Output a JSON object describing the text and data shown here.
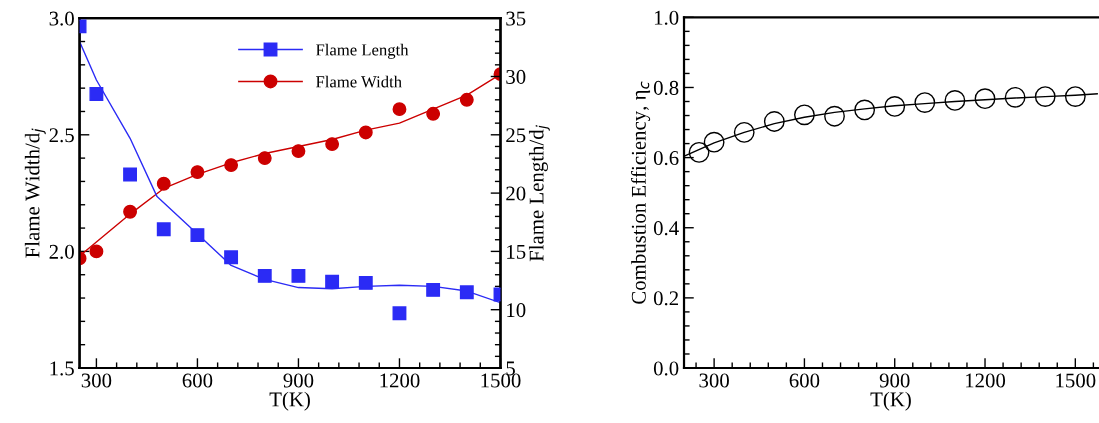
{
  "chart_data": [
    {
      "type": "scatter",
      "xlabel": "T(K)",
      "ylabel": "Flame Width/d$_{j}$",
      "y2label": "Flame Length/d$_{j}$",
      "legend": "top",
      "grid": false,
      "xlim": [
        250,
        1500
      ],
      "ylim": [
        1.5,
        3.0
      ],
      "y2lim": [
        5,
        35
      ],
      "xticks": [
        300,
        {
          "value": 360,
          "label": null
        },
        {
          "value": 420,
          "label": null
        },
        {
          "value": 480,
          "label": null
        },
        {
          "value": 540,
          "label": null
        },
        600,
        {
          "value": 660,
          "label": null
        },
        {
          "value": 720,
          "label": null
        },
        {
          "value": 780,
          "label": null
        },
        {
          "value": 840,
          "label": null
        },
        900,
        {
          "value": 960,
          "label": null
        },
        {
          "value": 1020,
          "label": null
        },
        {
          "value": 1080,
          "label": null
        },
        {
          "value": 1140,
          "label": null
        },
        1200,
        {
          "value": 1260,
          "label": null
        },
        {
          "value": 1320,
          "label": null
        },
        {
          "value": 1380,
          "label": null
        },
        {
          "value": 1440,
          "label": null
        },
        1500
      ],
      "yticks": [
        1.5,
        {
          "value": 1.6,
          "label": null
        },
        {
          "value": 1.7,
          "label": null
        },
        {
          "value": 1.8,
          "label": null
        },
        {
          "value": 1.9,
          "label": null
        },
        {
          "value": 2.0,
          "label": "2.0"
        },
        {
          "value": 2.1,
          "label": null
        },
        {
          "value": 2.2,
          "label": null
        },
        {
          "value": 2.3,
          "label": null
        },
        {
          "value": 2.4,
          "label": null
        },
        2.5,
        {
          "value": 2.6,
          "label": null
        },
        {
          "value": 2.7,
          "label": null
        },
        {
          "value": 2.8,
          "label": null
        },
        {
          "value": 2.9,
          "label": null
        },
        {
          "value": 3.0,
          "label": "3.0"
        }
      ],
      "y2ticks": [
        5,
        {
          "value": 6,
          "label": null
        },
        {
          "value": 7,
          "label": null
        },
        {
          "value": 8,
          "label": null
        },
        {
          "value": 9,
          "label": null
        },
        10,
        {
          "value": 11,
          "label": null
        },
        {
          "value": 12,
          "label": null
        },
        {
          "value": 13,
          "label": null
        },
        {
          "value": 14,
          "label": null
        },
        15,
        {
          "value": 16,
          "label": null
        },
        {
          "value": 17,
          "label": null
        },
        {
          "value": 18,
          "label": null
        },
        {
          "value": 19,
          "label": null
        },
        20,
        {
          "value": 21,
          "label": null
        },
        {
          "value": 22,
          "label": null
        },
        {
          "value": 23,
          "label": null
        },
        {
          "value": 24,
          "label": null
        },
        25,
        {
          "value": 26,
          "label": null
        },
        {
          "value": 27,
          "label": null
        },
        {
          "value": 28,
          "label": null
        },
        {
          "value": 29,
          "label": null
        },
        30,
        {
          "value": 31,
          "label": null
        },
        {
          "value": 32,
          "label": null
        },
        {
          "value": 33,
          "label": null
        },
        {
          "value": 34,
          "label": null
        },
        35
      ],
      "series": [
        {
          "name": "Flame Length",
          "axis": "y2",
          "color": "#2b2bf5",
          "marker": "square",
          "x": [
            250,
            300,
            400,
            500,
            600,
            700,
            800,
            900,
            1000,
            1100,
            1200,
            1300,
            1400,
            1500
          ],
          "values": [
            34.3,
            28.5,
            21.6,
            16.9,
            16.4,
            14.5,
            12.9,
            12.9,
            12.4,
            12.3,
            9.7,
            11.7,
            11.5,
            11.3
          ]
        },
        {
          "name": "Flame Width",
          "color": "#cc0000",
          "marker": "circle",
          "x": [
            250,
            300,
            400,
            500,
            600,
            700,
            800,
            900,
            1000,
            1100,
            1200,
            1300,
            1400,
            1500
          ],
          "values": [
            1.97,
            2.0,
            2.17,
            2.29,
            2.34,
            2.37,
            2.4,
            2.43,
            2.46,
            2.51,
            2.61,
            2.59,
            2.65,
            2.76
          ]
        },
        {
          "type": "line",
          "axis": "y2",
          "color": "#2b2bf5",
          "x": [
            250,
            300,
            400,
            480,
            600,
            700,
            800,
            900,
            1000,
            1100,
            1200,
            1300,
            1400,
            1500
          ],
          "values": [
            33.0,
            29.7,
            24.7,
            19.7,
            16.5,
            13.8,
            12.6,
            11.9,
            11.8,
            12.0,
            12.1,
            12.0,
            11.6,
            10.6
          ]
        },
        {
          "type": "line",
          "color": "#cc0000",
          "x": [
            250,
            300,
            400,
            500,
            600,
            700,
            800,
            900,
            1000,
            1100,
            1200,
            1300,
            1400,
            1500
          ],
          "values": [
            1.98,
            2.04,
            2.16,
            2.27,
            2.33,
            2.38,
            2.42,
            2.45,
            2.48,
            2.52,
            2.55,
            2.61,
            2.67,
            2.76
          ]
        }
      ]
    },
    {
      "type": "scatter",
      "xlabel": "T(K)",
      "ylabel": "Combustion Efficiency, η$_{c}$",
      "grid": false,
      "xlim": [
        200,
        1575
      ],
      "ylim": [
        0,
        1
      ],
      "xticks": [
        {
          "value": 240,
          "label": null
        },
        300,
        {
          "value": 360,
          "label": null
        },
        {
          "value": 420,
          "label": null
        },
        {
          "value": 480,
          "label": null
        },
        {
          "value": 540,
          "label": null
        },
        600,
        {
          "value": 660,
          "label": null
        },
        {
          "value": 720,
          "label": null
        },
        {
          "value": 780,
          "label": null
        },
        {
          "value": 840,
          "label": null
        },
        900,
        {
          "value": 960,
          "label": null
        },
        {
          "value": 1020,
          "label": null
        },
        {
          "value": 1080,
          "label": null
        },
        {
          "value": 1140,
          "label": null
        },
        1200,
        {
          "value": 1260,
          "label": null
        },
        {
          "value": 1320,
          "label": null
        },
        {
          "value": 1380,
          "label": null
        },
        {
          "value": 1440,
          "label": null
        },
        1500,
        {
          "value": 1560,
          "label": null
        }
      ],
      "yticks": [
        {
          "value": 0,
          "label": "0.0"
        },
        {
          "value": 0.04,
          "label": null
        },
        {
          "value": 0.08,
          "label": null
        },
        {
          "value": 0.12,
          "label": null
        },
        {
          "value": 0.16,
          "label": null
        },
        0.2,
        {
          "value": 0.24,
          "label": null
        },
        {
          "value": 0.28,
          "label": null
        },
        {
          "value": 0.32,
          "label": null
        },
        {
          "value": 0.36,
          "label": null
        },
        0.4,
        {
          "value": 0.44,
          "label": null
        },
        {
          "value": 0.48,
          "label": null
        },
        {
          "value": 0.52,
          "label": null
        },
        {
          "value": 0.56,
          "label": null
        },
        0.6,
        {
          "value": 0.64,
          "label": null
        },
        {
          "value": 0.68,
          "label": null
        },
        {
          "value": 0.72,
          "label": null
        },
        {
          "value": 0.76,
          "label": null
        },
        0.8,
        {
          "value": 0.84,
          "label": null
        },
        {
          "value": 0.88,
          "label": null
        },
        {
          "value": 0.92,
          "label": null
        },
        {
          "value": 0.96,
          "label": null
        },
        {
          "value": 1,
          "label": "1.0"
        }
      ],
      "series": [
        {
          "color": "#000000",
          "marker": "circle",
          "x": [
            250,
            300,
            400,
            500,
            600,
            700,
            800,
            900,
            1000,
            1100,
            1200,
            1300,
            1400,
            1500
          ],
          "values": [
            0.615,
            0.644,
            0.672,
            0.703,
            0.722,
            0.718,
            0.736,
            0.746,
            0.757,
            0.763,
            0.768,
            0.772,
            0.774,
            0.774
          ]
        },
        {
          "type": "line",
          "color": "#000000",
          "x": [
            200,
            300,
            400,
            500,
            600,
            700,
            800,
            900,
            1000,
            1100,
            1200,
            1300,
            1400,
            1500,
            1575
          ],
          "values": [
            0.604,
            0.642,
            0.672,
            0.697,
            0.715,
            0.729,
            0.739,
            0.748,
            0.754,
            0.76,
            0.765,
            0.77,
            0.774,
            0.778,
            0.782
          ]
        }
      ]
    }
  ]
}
